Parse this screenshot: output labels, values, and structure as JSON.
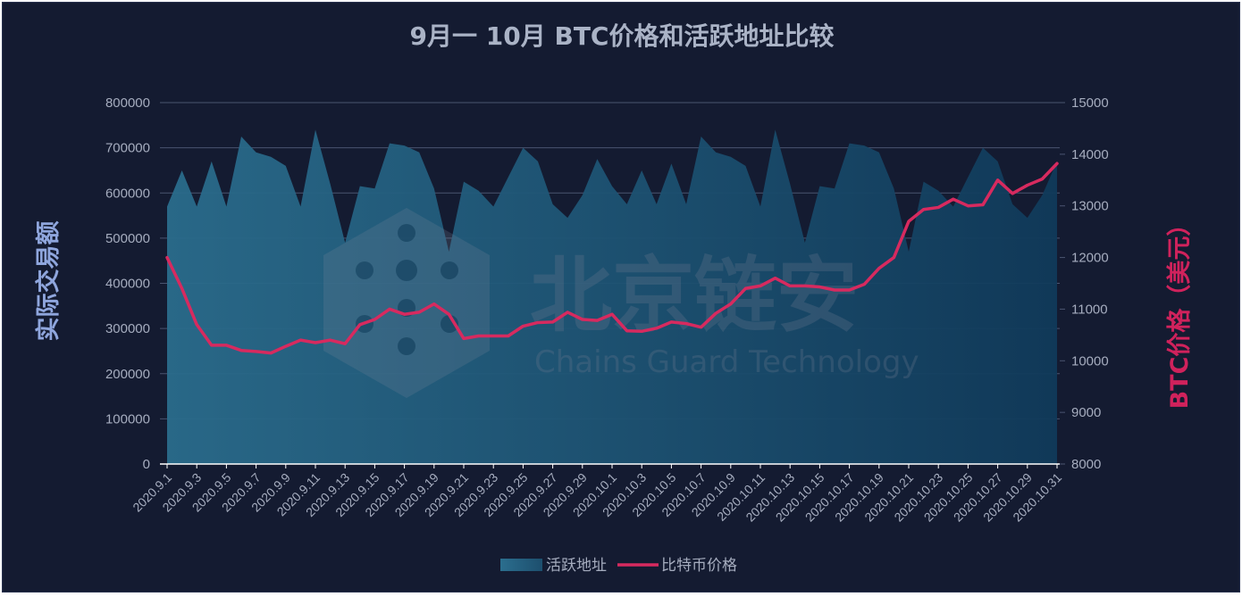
{
  "chart_data": {
    "type": "area",
    "title": "9月一 10月 BTC价格和活跃地址比较",
    "ylabel_left": "实际交易额",
    "ylabel_right": "BTC价格（美元）",
    "ylim_left": [
      0,
      800000
    ],
    "yticks_left": [
      "0",
      "100000",
      "200000",
      "300000",
      "400000",
      "500000",
      "600000",
      "700000",
      "800000"
    ],
    "ylim_right": [
      8000,
      15000
    ],
    "yticks_right": [
      "8000",
      "9000",
      "10000",
      "11000",
      "12000",
      "13000",
      "14000",
      "15000"
    ],
    "grid": true,
    "legend_position": "bottom-center",
    "x": [
      "2020.9.1",
      "2020.9.2",
      "2020.9.3",
      "2020.9.4",
      "2020.9.5",
      "2020.9.6",
      "2020.9.7",
      "2020.9.8",
      "2020.9.9",
      "2020.9.10",
      "2020.9.11",
      "2020.9.12",
      "2020.9.13",
      "2020.9.14",
      "2020.9.15",
      "2020.9.16",
      "2020.9.17",
      "2020.9.18",
      "2020.9.19",
      "2020.9.20",
      "2020.9.21",
      "2020.9.22",
      "2020.9.23",
      "2020.9.24",
      "2020.9.25",
      "2020.9.26",
      "2020.9.27",
      "2020.9.28",
      "2020.9.29",
      "2020.9.30",
      "2020.10.1",
      "2020.10.2",
      "2020.10.3",
      "2020.10.4",
      "2020.10.5",
      "2020.10.6",
      "2020.10.7",
      "2020.10.8",
      "2020.10.9",
      "2020.10.10",
      "2020.10.11",
      "2020.10.12",
      "2020.10.13",
      "2020.10.14",
      "2020.10.15",
      "2020.10.16",
      "2020.10.17",
      "2020.10.18",
      "2020.10.19",
      "2020.10.20",
      "2020.10.21",
      "2020.10.22",
      "2020.10.23",
      "2020.10.24",
      "2020.10.25",
      "2020.10.26",
      "2020.10.27",
      "2020.10.28",
      "2020.10.29",
      "2020.10.30",
      "2020.10.31"
    ],
    "x_tick_labels": [
      "2020.9.1",
      "2020.9.3",
      "2020.9.5",
      "2020.9.7",
      "2020.9.9",
      "2020.9.11",
      "2020.9.13",
      "2020.9.15",
      "2020.9.17",
      "2020.9.19",
      "2020.9.21",
      "2020.9.23",
      "2020.9.25",
      "2020.9.27",
      "2020.9.29",
      "2020.10.1",
      "2020.10.3",
      "2020.10.5",
      "2020.10.7",
      "2020.10.9",
      "2020.10.11",
      "2020.10.13",
      "2020.10.15",
      "2020.10.17",
      "2020.10.19",
      "2020.10.21",
      "2020.10.23",
      "2020.10.25",
      "2020.10.27",
      "2020.10.29",
      "2020.10.31"
    ],
    "series": [
      {
        "name": "活跃地址",
        "type": "area",
        "axis": "left",
        "color": "#22607f",
        "values": [
          570000,
          650000,
          570000,
          670000,
          570000,
          725000,
          690000,
          680000,
          660000,
          570000,
          740000,
          620000,
          490000,
          615000,
          610000,
          710000,
          705000,
          690000,
          610000,
          470000,
          625000,
          605000,
          570000,
          635000,
          700000,
          670000,
          575000,
          545000,
          595000,
          675000,
          615000,
          575000,
          650000,
          575000,
          665000,
          575000,
          725000,
          690000,
          680000,
          660000,
          570000,
          740000,
          620000,
          490000,
          615000,
          610000,
          710000,
          705000,
          690000,
          610000,
          470000,
          625000,
          605000,
          570000,
          635000,
          700000,
          670000,
          575000,
          545000,
          595000,
          670000
        ]
      },
      {
        "name": "比特币价格",
        "type": "line",
        "axis": "right",
        "color": "#d72a5f",
        "values": [
          12000,
          11400,
          10700,
          10300,
          10300,
          10200,
          10180,
          10150,
          10280,
          10400,
          10350,
          10400,
          10330,
          10700,
          10800,
          11000,
          10900,
          10940,
          11100,
          10900,
          10430,
          10480,
          10480,
          10480,
          10670,
          10740,
          10750,
          10940,
          10800,
          10780,
          10900,
          10580,
          10570,
          10630,
          10750,
          10720,
          10650,
          10920,
          11100,
          11400,
          11450,
          11600,
          11450,
          11450,
          11430,
          11370,
          11370,
          11480,
          11790,
          12000,
          12700,
          12930,
          12970,
          13130,
          13000,
          13020,
          13500,
          13240,
          13400,
          13520,
          13820
        ]
      }
    ],
    "watermark": {
      "name": "北京链安",
      "subtitle": "Chains Guard Technology"
    }
  }
}
